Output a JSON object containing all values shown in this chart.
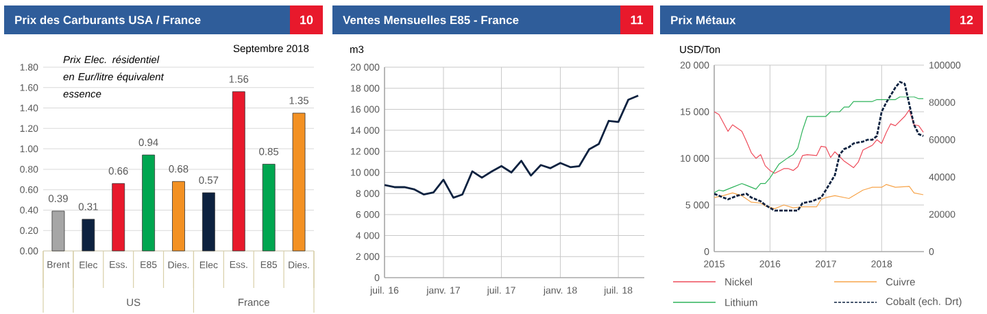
{
  "chart_data": [
    {
      "type": "bar",
      "title": "Prix des Carburants USA / France",
      "categories": [
        "Brent",
        "Elec",
        "Ess.",
        "E85",
        "Dies.",
        "Elec",
        "Ess.",
        "E85",
        "Dies."
      ],
      "values": [
        0.39,
        0.31,
        0.66,
        0.94,
        0.68,
        0.57,
        1.56,
        0.85,
        1.35
      ],
      "colors": [
        "#a6a6a6",
        "#0d2240",
        "#e8192c",
        "#00a650",
        "#f39123",
        "#0d2240",
        "#e8192c",
        "#00a650",
        "#f39123"
      ],
      "ylim": [
        0,
        1.8
      ],
      "yticks": [
        {
          "value": 0,
          "label": "0.00"
        },
        {
          "value": 0.2,
          "label": "0.20"
        },
        {
          "value": 0.4,
          "label": "0.40"
        },
        {
          "value": 0.6,
          "label": "0.60"
        },
        {
          "value": 0.8,
          "label": "0.80"
        },
        {
          "value": 1.0,
          "label": "1.00"
        },
        {
          "value": 1.2,
          "label": "1.20"
        },
        {
          "value": 1.4,
          "label": "1.40"
        },
        {
          "value": 1.6,
          "label": "1.60"
        },
        {
          "value": 1.8,
          "label": "1.80"
        }
      ],
      "grid": "y",
      "data_labels": true,
      "annotations": [
        "10",
        "*Prix Elec. résidentiel en Eur/litre équivalent essence*",
        "Septembre 2018",
        "US",
        "France"
      ]
    },
    {
      "type": "line",
      "title": "Ventes Mensuelles E85 - France",
      "ylabel": "m3",
      "x": [
        "2016-07",
        "2016-08",
        "2016-09",
        "2016-10",
        "2016-11",
        "2016-12",
        "2017-01",
        "2017-02",
        "2017-03",
        "2017-04",
        "2017-05",
        "2017-06",
        "2017-07",
        "2017-08",
        "2017-09",
        "2017-10",
        "2017-11",
        "2017-12",
        "2018-01",
        "2018-02",
        "2018-03",
        "2018-04",
        "2018-05",
        "2018-06",
        "2018-07",
        "2018-08",
        "2018-09"
      ],
      "values": [
        8800,
        8600,
        8600,
        8400,
        7900,
        8100,
        9300,
        7600,
        7900,
        10100,
        9500,
        10100,
        10600,
        10000,
        11100,
        9700,
        10700,
        10400,
        10900,
        10500,
        10600,
        12200,
        12700,
        14900,
        14800,
        16900,
        17300
      ],
      "color": "#0d2240",
      "xlim": [
        "2016-07",
        "2018-09-20"
      ],
      "xticks": [
        {
          "value": "2016-07",
          "label": "juil. 16"
        },
        {
          "value": "2017-01",
          "label": "janv. 17"
        },
        {
          "value": "2017-07",
          "label": "juil. 17"
        },
        {
          "value": "2018-01",
          "label": "janv. 18"
        },
        {
          "value": "2018-07",
          "label": "juil. 18"
        }
      ],
      "ylim": [
        0,
        20000
      ],
      "yticks": [
        0,
        {
          "value": 2000,
          "label": "2 000"
        },
        {
          "value": 4000,
          "label": "4 000"
        },
        {
          "value": 6000,
          "label": "6 000"
        },
        {
          "value": 8000,
          "label": "8 000"
        },
        {
          "value": 10000,
          "label": "10 000"
        },
        {
          "value": 12000,
          "label": "12 000"
        },
        {
          "value": 14000,
          "label": "14 000"
        },
        {
          "value": 16000,
          "label": "16 000"
        },
        {
          "value": 18000,
          "label": "18 000"
        },
        {
          "value": 20000,
          "label": "20 000"
        }
      ],
      "grid": true,
      "annotations": [
        "11"
      ]
    },
    {
      "type": "line",
      "title": "Prix Métaux",
      "ylabel": "USD/Ton",
      "series": [
        {
          "name": "Nickel",
          "color": "#ee4b5a",
          "x": [
            "2015-01",
            "2015-02",
            "2015-04",
            "2015-05",
            "2015-07",
            "2015-08",
            "2015-09",
            "2015-10",
            "2015-11",
            "2015-12",
            "2016-01",
            "2016-02",
            "2016-04",
            "2016-05",
            "2016-06",
            "2016-07",
            "2016-08",
            "2016-09",
            "2016-11",
            "2016-12",
            "2017-01",
            "2017-02",
            "2017-03",
            "2017-04",
            "2017-05",
            "2017-07",
            "2017-08",
            "2017-09",
            "2017-11",
            "2017-12",
            "2018-01",
            "2018-02",
            "2018-03",
            "2018-04",
            "2018-06",
            "2018-07",
            "2018-08",
            "2018-09",
            "2018-10"
          ],
          "values": [
            15000,
            14700,
            12900,
            13600,
            12900,
            11800,
            10600,
            10000,
            10400,
            9200,
            8700,
            8400,
            8900,
            8900,
            8700,
            9100,
            10300,
            10400,
            10300,
            11300,
            11200,
            10100,
            10700,
            10200,
            9700,
            9000,
            9600,
            10900,
            11400,
            12000,
            11600,
            12800,
            13700,
            13500,
            14500,
            15200,
            13600,
            13500,
            12800
          ]
        },
        {
          "name": "Cuivre",
          "color": "#f7a44a",
          "x": [
            "2015-01",
            "2015-03",
            "2015-05",
            "2015-07",
            "2015-09",
            "2015-11",
            "2015-12",
            "2016-02",
            "2016-04",
            "2016-06",
            "2016-08",
            "2016-11",
            "2016-12",
            "2017-01",
            "2017-03",
            "2017-06",
            "2017-07",
            "2017-09",
            "2017-11",
            "2018-01",
            "2018-02",
            "2018-04",
            "2018-07",
            "2018-08",
            "2018-10"
          ],
          "values": [
            5800,
            6000,
            6300,
            6000,
            5300,
            5200,
            4900,
            4600,
            5000,
            4700,
            4800,
            4800,
            5600,
            5800,
            6000,
            5700,
            6000,
            6600,
            6900,
            6900,
            7200,
            6900,
            7000,
            6300,
            6100
          ]
        },
        {
          "name": "Lithium",
          "color": "#2db35a",
          "x": [
            "2015-01",
            "2015-02",
            "2015-03",
            "2015-05",
            "2015-07",
            "2015-08",
            "2015-10",
            "2015-11",
            "2015-12",
            "2016-01",
            "2016-03",
            "2016-05",
            "2016-06",
            "2016-07",
            "2016-08",
            "2016-09",
            "2016-11",
            "2017-01",
            "2017-02",
            "2017-04",
            "2017-05",
            "2017-06",
            "2017-07",
            "2017-11",
            "2017-12",
            "2018-04",
            "2018-05",
            "2018-08",
            "2018-09",
            "2018-10"
          ],
          "values": [
            6300,
            6600,
            6500,
            6900,
            7300,
            7100,
            6700,
            7300,
            7300,
            7900,
            9400,
            10100,
            10400,
            11100,
            13000,
            14500,
            14500,
            14500,
            15000,
            15000,
            15500,
            15500,
            16100,
            16100,
            16300,
            16300,
            16600,
            16600,
            16400,
            16400
          ]
        },
        {
          "name": "Cobalt (ech. Drt)",
          "color": "#0d2240",
          "axis": "y2",
          "line_style": "dashed",
          "x": [
            "2015-01",
            "2015-04",
            "2015-06",
            "2015-08",
            "2015-09",
            "2015-11",
            "2015-12",
            "2016-02",
            "2016-07",
            "2016-08",
            "2016-10",
            "2016-12",
            "2017-01",
            "2017-03",
            "2017-04",
            "2017-05",
            "2017-06",
            "2017-07",
            "2017-09",
            "2017-10",
            "2017-11",
            "2017-12",
            "2018-01",
            "2018-02",
            "2018-04",
            "2018-05",
            "2018-06",
            "2018-07",
            "2018-08",
            "2018-09",
            "2018-10"
          ],
          "values": [
            31000,
            28000,
            30000,
            31000,
            29000,
            27000,
            25000,
            22000,
            22000,
            26000,
            27000,
            29000,
            33000,
            41000,
            52000,
            55000,
            56000,
            58000,
            59000,
            60000,
            60000,
            62000,
            75000,
            80000,
            88000,
            91000,
            90000,
            79000,
            68000,
            63000,
            62000
          ]
        }
      ],
      "xlim": [
        "2015-01",
        "2018-10-05"
      ],
      "xticks": [
        "2015",
        "2016",
        "2017",
        "2018"
      ],
      "ylim": [
        0,
        20000
      ],
      "yticks": [
        0,
        {
          "value": 5000,
          "label": "5 000"
        },
        {
          "value": 10000,
          "label": "10 000"
        },
        {
          "value": 15000,
          "label": "15 000"
        },
        {
          "value": 20000,
          "label": "20 000"
        }
      ],
      "y2lim": [
        0,
        100000
      ],
      "y2ticks": [
        0,
        20000,
        40000,
        60000,
        80000,
        100000
      ],
      "grid": true,
      "legend": "bottom",
      "annotations": [
        "12"
      ]
    }
  ]
}
